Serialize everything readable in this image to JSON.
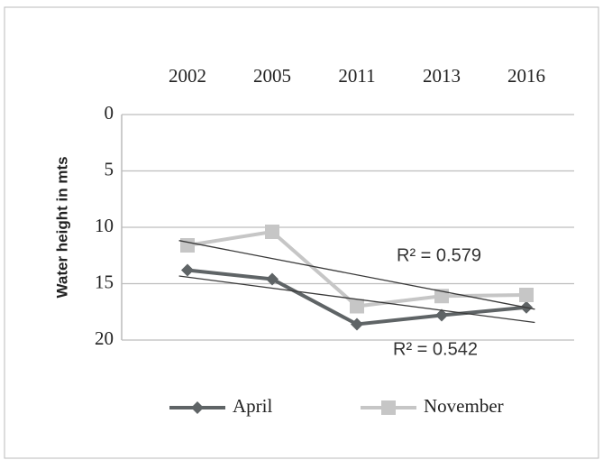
{
  "chart_data": {
    "type": "line",
    "y_label": "Water height in mts",
    "categories": [
      "2002",
      "2005",
      "2011",
      "2013",
      "2016"
    ],
    "series": [
      {
        "name": "April",
        "color": "#5f6466",
        "marker": "diamond",
        "values": [
          13.8,
          14.6,
          18.6,
          17.8,
          17.1
        ]
      },
      {
        "name": "November",
        "color": "#c6c6c6",
        "marker": "square",
        "values": [
          11.6,
          10.4,
          17.0,
          16.1,
          16.0
        ]
      }
    ],
    "trendline": true,
    "trendline_color": "#3a3a3a",
    "annotations": [
      "R² = 0.579",
      "R² = 0.542"
    ],
    "ylim": [
      0,
      20
    ],
    "yticks": [
      0,
      5,
      10,
      15,
      20
    ],
    "y_inverted": true,
    "grid": true,
    "x_axis_position": "top",
    "legend": "bottom"
  }
}
